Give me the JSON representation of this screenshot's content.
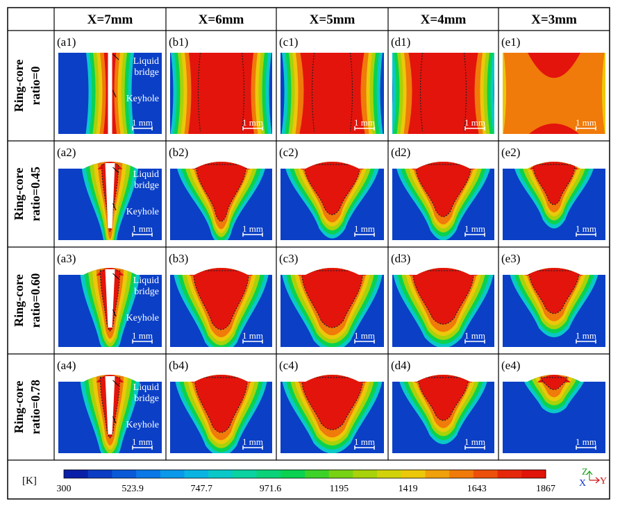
{
  "columns": [
    {
      "label": "X=7mm",
      "key": "a"
    },
    {
      "label": "X=6mm",
      "key": "b"
    },
    {
      "label": "X=5mm",
      "key": "c"
    },
    {
      "label": "X=4mm",
      "key": "d"
    },
    {
      "label": "X=3mm",
      "key": "e"
    }
  ],
  "rows": [
    {
      "line1": "Ring-core",
      "line2": "ratio=0",
      "shape": "through"
    },
    {
      "line1": "Ring-core",
      "line2": "ratio=0.45",
      "shape": "v"
    },
    {
      "line1": "Ring-core",
      "line2": "ratio=0.60",
      "shape": "u"
    },
    {
      "line1": "Ring-core",
      "line2": "ratio=0.78",
      "shape": "u"
    }
  ],
  "panels": [
    [
      "(a1)",
      "(b1)",
      "(c1)",
      "(d1)",
      "(e1)"
    ],
    [
      "(a2)",
      "(b2)",
      "(c2)",
      "(d2)",
      "(e2)"
    ],
    [
      "(a3)",
      "(b3)",
      "(c3)",
      "(d3)",
      "(e3)"
    ],
    [
      "(a4)",
      "(b4)",
      "(c4)",
      "(d4)",
      "(e4)"
    ]
  ],
  "annotations": {
    "liquid_bridge_line1": "Liquid",
    "liquid_bridge_line2": "bridge",
    "keyhole": "Keyhole"
  },
  "scale_bar": "1 mm",
  "colorbar": {
    "unit": "[K]",
    "min": 300,
    "max": 1867,
    "ticks": [
      "300",
      "523.9",
      "747.7",
      "971.6",
      "1195",
      "1419",
      "1643",
      "1867"
    ],
    "colors": [
      "#0a1fa8",
      "#0b3cc4",
      "#0a5ad8",
      "#0a78e6",
      "#0a98ea",
      "#0ab4e2",
      "#0ac8c8",
      "#0ad2a0",
      "#0ad278",
      "#0ad250",
      "#3cd228",
      "#78d214",
      "#a8d20a",
      "#d2d20a",
      "#ecc80a",
      "#f0a00a",
      "#f07a0a",
      "#ec500a",
      "#e6280a",
      "#e01408"
    ]
  },
  "axes": {
    "z": "Z",
    "x": "X",
    "y": "Y"
  },
  "colors": {
    "base": "#0b3fc6",
    "melt": "#e3140c",
    "hot": "#f0a020",
    "keyhole": "#ffffff"
  }
}
